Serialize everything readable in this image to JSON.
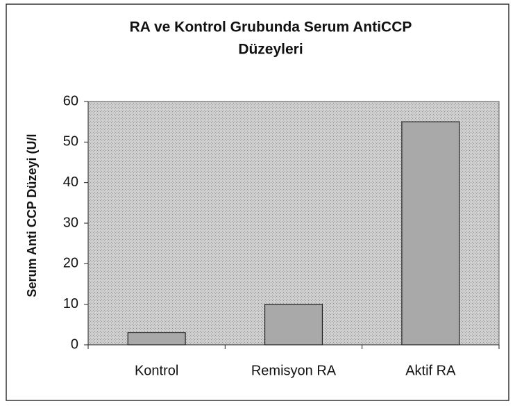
{
  "chart_data": {
    "type": "bar",
    "title": [
      "RA ve Kontrol Grubunda Serum AntiCCP",
      "Düzeyleri"
    ],
    "y_label": "Serum Anti CCP Düzeyi (U/l",
    "categories": [
      "Kontrol",
      "Remisyon RA",
      "Aktif RA"
    ],
    "values": [
      3,
      10,
      55
    ],
    "color": "#a9a9a9",
    "ylim": [
      0,
      60
    ],
    "yticks": [
      0,
      10,
      20,
      30,
      40,
      50,
      60
    ],
    "grid": false
  }
}
